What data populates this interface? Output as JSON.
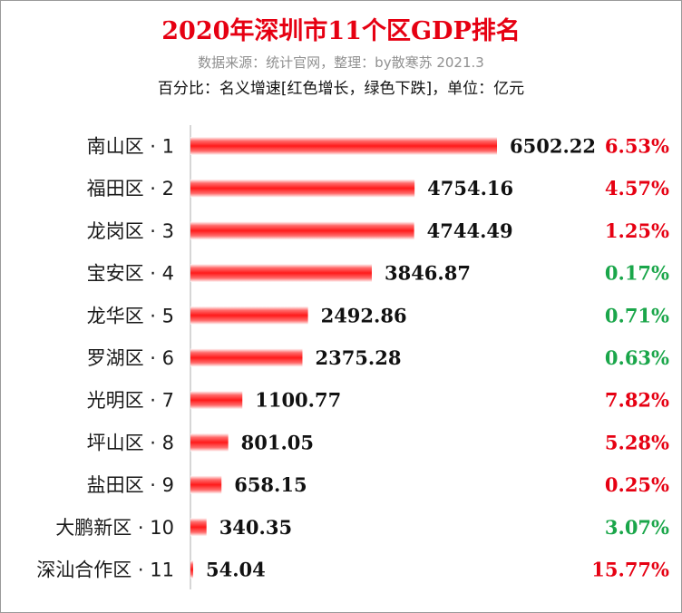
{
  "colors": {
    "title": "#e60012",
    "bar": "#ff1a1a",
    "increase": "#e60012",
    "decrease": "#1aa64a"
  },
  "chart_data": {
    "type": "bar",
    "orientation": "horizontal",
    "title": "2020年深圳市11个区GDP排名",
    "subtitle": "数据来源：统计官网，整理：by散寒苏  2021.3",
    "note": "百分比：名义增速[红色增长，绿色下跌]，单位：亿元",
    "categories": [
      "南山区 · 1",
      "福田区 · 2",
      "龙岗区 · 3",
      "宝安区 · 4",
      "龙华区 · 5",
      "罗湖区 · 6",
      "光明区 · 7",
      "坪山区 · 8",
      "盐田区 · 9",
      "大鹏新区 · 10",
      "深汕合作区 · 11"
    ],
    "values": [
      6502.22,
      4754.16,
      4744.49,
      3846.87,
      2492.86,
      2375.28,
      1100.77,
      801.05,
      658.15,
      340.35,
      54.04
    ],
    "value_labels": [
      "6502.22",
      "4754.16",
      "4744.49",
      "3846.87",
      "2492.86",
      "2375.28",
      "1100.77",
      "801.05",
      "658.15",
      "340.35",
      "54.04"
    ],
    "growth": [
      "6.53%",
      "4.57%",
      "1.25%",
      "0.17%",
      "0.71%",
      "0.63%",
      "7.82%",
      "5.28%",
      "0.25%",
      "3.07%",
      "15.77%"
    ],
    "growth_direction": [
      "up",
      "up",
      "up",
      "down",
      "down",
      "down",
      "up",
      "up",
      "up",
      "down",
      "up"
    ],
    "xlim": [
      0,
      6502.22
    ],
    "grid": false
  }
}
